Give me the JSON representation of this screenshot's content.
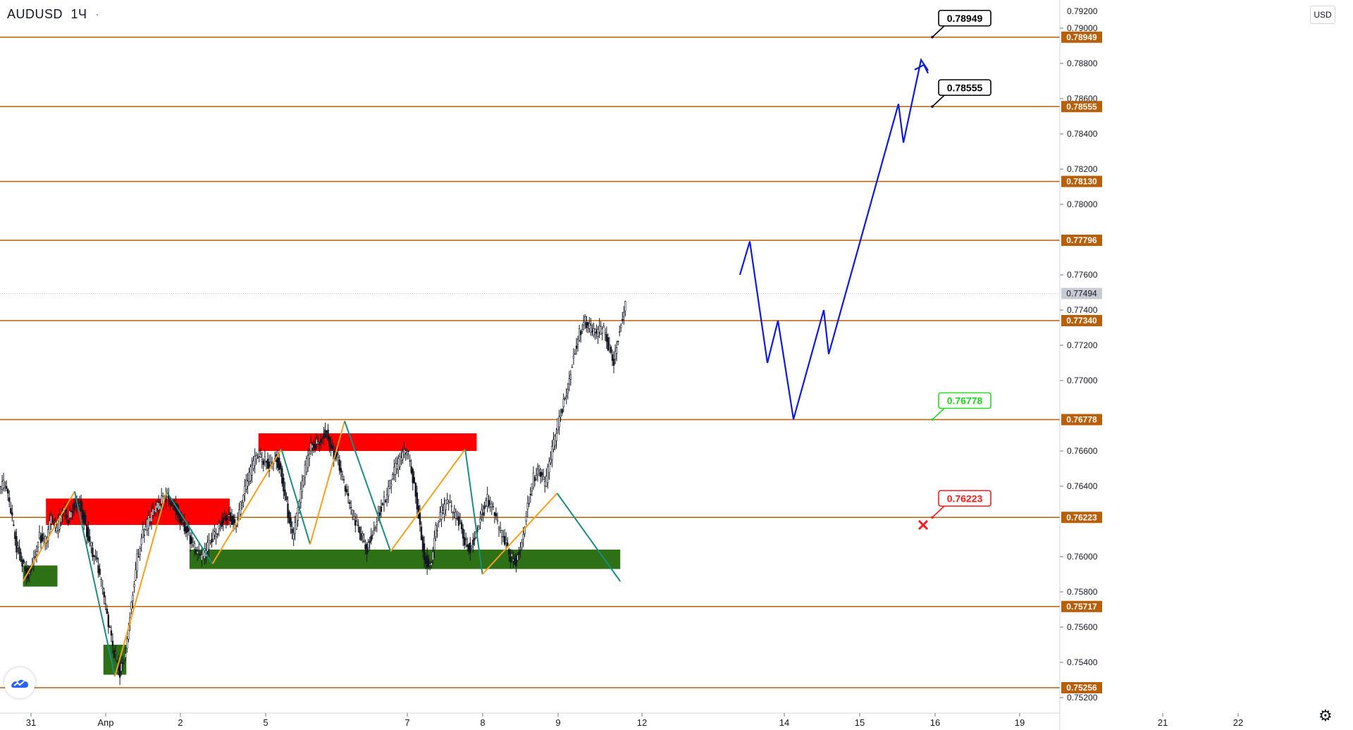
{
  "header": {
    "symbol": "AUDUSD",
    "interval": "1Ч",
    "dot": "·"
  },
  "currency_button": "USD",
  "colors": {
    "level": "#b85f0a",
    "resistance_zone": "#ff0000",
    "support_zone": "#2e7016",
    "zigzag_up": "#f7a01a",
    "zigzag_down": "#1a8c82",
    "projection": "#0d1bd6",
    "candle_up": "#ffffff",
    "candle_border": "#131722",
    "current_price": "#c9cbd3"
  },
  "icons": {
    "logo": "tradingview-logo-icon",
    "settings": "gear-icon",
    "stop": "x-mark-icon"
  },
  "chart_data": {
    "type": "candlestick",
    "symbol": "AUDUSD",
    "timeframe": "1Ч",
    "y_axis": {
      "range": [
        0.7516,
        0.7916
      ],
      "ticks": [
        "0.79000",
        "0.78800",
        "0.78600",
        "0.78400",
        "0.78200",
        "0.78000",
        "0.77600",
        "0.77400",
        "0.77200",
        "0.77000",
        "0.76600",
        "0.76400",
        "0.76000",
        "0.75800",
        "0.75600",
        "0.75400",
        "0.75200"
      ],
      "top_partial": "0.79200"
    },
    "x_axis": {
      "ticks": [
        "31",
        "Апр",
        "2",
        "5",
        "7",
        "8",
        "9",
        "12",
        "14",
        "15",
        "16",
        "19",
        "21",
        "22"
      ]
    },
    "current_price": "0.77494",
    "levels": [
      {
        "price": 0.78949,
        "label": "0.78949"
      },
      {
        "price": 0.78555,
        "label": "0.78555"
      },
      {
        "price": 0.7813,
        "label": "0.78130"
      },
      {
        "price": 0.77796,
        "label": "0.77796"
      },
      {
        "price": 0.7734,
        "label": "0.77340"
      },
      {
        "price": 0.76778,
        "label": "0.76778"
      },
      {
        "price": 0.76223,
        "label": "0.76223"
      },
      {
        "price": 0.75717,
        "label": "0.75717"
      },
      {
        "price": 0.75256,
        "label": "0.75256"
      }
    ],
    "callouts": [
      {
        "label": "0.78949",
        "price": 0.78949,
        "style": "target"
      },
      {
        "label": "0.78555",
        "price": 0.78555,
        "style": "target"
      },
      {
        "label": "0.76778",
        "price": 0.76778,
        "style": "entry"
      },
      {
        "label": "0.76223",
        "price": 0.76223,
        "style": "stop"
      }
    ],
    "zones": [
      {
        "kind": "resistance",
        "from_bar": 8,
        "to_bar": 40,
        "high": 0.7633,
        "low": 0.7618
      },
      {
        "kind": "support",
        "from_bar": 4,
        "to_bar": 10,
        "high": 0.7595,
        "low": 0.7583
      },
      {
        "kind": "resistance",
        "from_bar": 45,
        "to_bar": 83,
        "high": 0.767,
        "low": 0.766
      },
      {
        "kind": "support",
        "from_bar": 18,
        "to_bar": 22,
        "high": 0.755,
        "low": 0.7533
      },
      {
        "kind": "support",
        "from_bar": 33,
        "to_bar": 108,
        "high": 0.7604,
        "low": 0.7593
      }
    ],
    "zigzags": [
      {
        "direction": "up",
        "points": [
          [
            4,
            0.7586
          ],
          [
            13,
            0.7637
          ]
        ]
      },
      {
        "direction": "down",
        "points": [
          [
            13,
            0.7637
          ],
          [
            20,
            0.7532
          ]
        ]
      },
      {
        "direction": "up",
        "points": [
          [
            20,
            0.7532
          ],
          [
            29,
            0.7637
          ]
        ]
      },
      {
        "direction": "down",
        "points": [
          [
            29,
            0.7637
          ],
          [
            37,
            0.7596
          ]
        ]
      },
      {
        "direction": "up",
        "points": [
          [
            37,
            0.7596
          ],
          [
            49,
            0.7661
          ]
        ]
      },
      {
        "direction": "down",
        "points": [
          [
            49,
            0.7661
          ],
          [
            54,
            0.7607
          ]
        ]
      },
      {
        "direction": "up",
        "points": [
          [
            54,
            0.7607
          ],
          [
            60,
            0.7677
          ]
        ]
      },
      {
        "direction": "down",
        "points": [
          [
            60,
            0.7677
          ],
          [
            68,
            0.7603
          ]
        ]
      },
      {
        "direction": "up",
        "points": [
          [
            68,
            0.7603
          ],
          [
            81,
            0.7661
          ]
        ]
      },
      {
        "direction": "down",
        "points": [
          [
            81,
            0.7661
          ],
          [
            84,
            0.759
          ]
        ]
      },
      {
        "direction": "up",
        "points": [
          [
            84,
            0.759
          ],
          [
            97,
            0.7636
          ]
        ]
      },
      {
        "direction": "down",
        "points": [
          [
            97,
            0.7636
          ],
          [
            108,
            0.7586
          ]
        ]
      }
    ],
    "projection": [
      [
        0,
        0.776
      ],
      [
        1,
        0.7779
      ],
      [
        2,
        0.771
      ],
      [
        3,
        0.7734
      ],
      [
        4,
        0.7678
      ],
      [
        5,
        0.774
      ],
      [
        6,
        0.7715
      ],
      [
        7,
        0.7857
      ],
      [
        8,
        0.7835
      ],
      [
        9,
        0.7882
      ],
      [
        10,
        0.7876
      ]
    ],
    "price_path": [
      0.764,
      0.7625,
      0.7605,
      0.7598,
      0.759,
      0.76,
      0.7612,
      0.7608,
      0.762,
      0.7615,
      0.7625,
      0.7622,
      0.763,
      0.7632,
      0.7618,
      0.7605,
      0.7595,
      0.758,
      0.756,
      0.7545,
      0.7535,
      0.7548,
      0.7575,
      0.76,
      0.7612,
      0.762,
      0.7625,
      0.763,
      0.7634,
      0.7632,
      0.7626,
      0.762,
      0.7612,
      0.7604,
      0.7598,
      0.7603,
      0.761,
      0.7616,
      0.7622,
      0.7625,
      0.7618,
      0.7628,
      0.764,
      0.765,
      0.7657,
      0.7655,
      0.7652,
      0.7658,
      0.765,
      0.763,
      0.761,
      0.7625,
      0.7645,
      0.766,
      0.7664,
      0.7668,
      0.7672,
      0.766,
      0.7655,
      0.764,
      0.7628,
      0.7618,
      0.7612,
      0.7605,
      0.7615,
      0.7625,
      0.7632,
      0.764,
      0.765,
      0.7655,
      0.766,
      0.7645,
      0.7625,
      0.76,
      0.7595,
      0.7615,
      0.7625,
      0.763,
      0.7625,
      0.762,
      0.761,
      0.7605,
      0.7615,
      0.7625,
      0.7632,
      0.7625,
      0.7615,
      0.7608,
      0.76,
      0.7598,
      0.761,
      0.763,
      0.7645,
      0.7648,
      0.764,
      0.7655,
      0.7672,
      0.7685,
      0.7698,
      0.7715,
      0.7728,
      0.7733,
      0.7728,
      0.7725,
      0.773,
      0.772,
      0.7712,
      0.773,
      0.7745
    ]
  }
}
